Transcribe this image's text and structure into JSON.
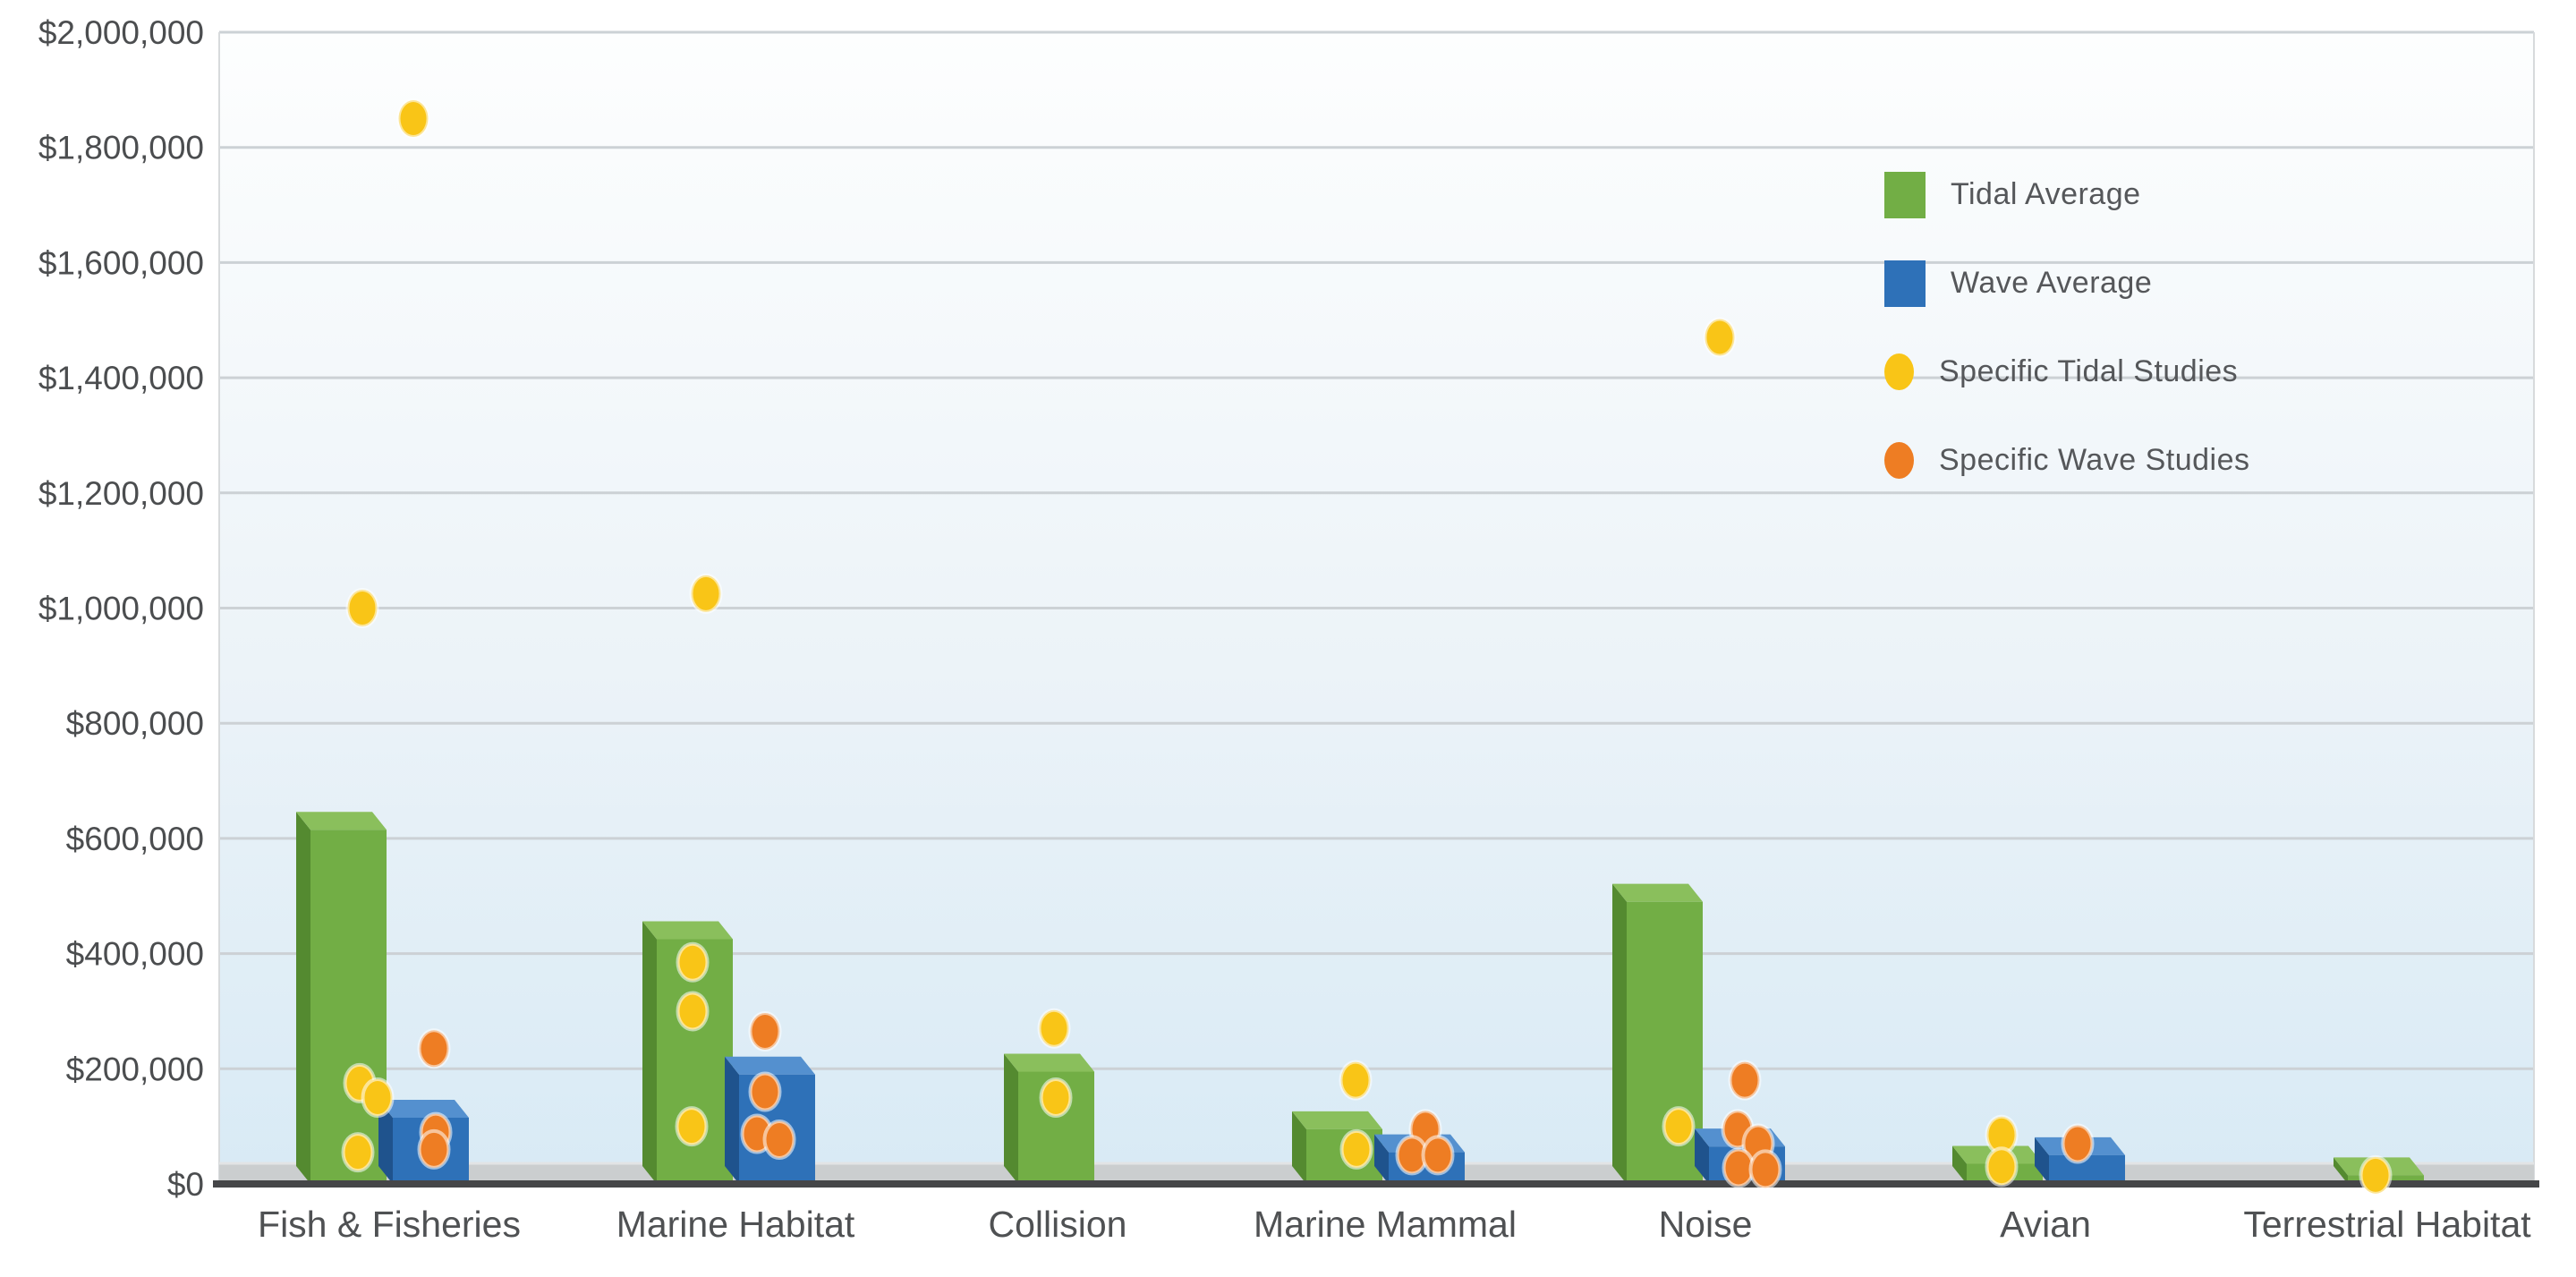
{
  "chart_data": {
    "type": "bar",
    "subtype": "3d-columns-with-scatter-overlay",
    "title": "",
    "xlabel": "",
    "ylabel": "",
    "categories": [
      "Fish & Fisheries",
      "Marine Habitat",
      "Collision",
      "Marine Mammal",
      "Noise",
      "Avian",
      "Terrestrial Habitat"
    ],
    "y_axis": {
      "min": 0,
      "max": 2000000,
      "step": 200000,
      "tick_labels": [
        "$0",
        "$200,000",
        "$400,000",
        "$600,000",
        "$800,000",
        "$1,000,000",
        "$1,200,000",
        "$1,400,000",
        "$1,600,000",
        "$1,800,000",
        "$2,000,000"
      ],
      "grid": true
    },
    "legend_position": "top-right",
    "series": [
      {
        "name": "Tidal Average",
        "kind": "bar",
        "color": "#72ae45",
        "color_top": "#8abf5c",
        "color_side": "#548a30",
        "values": [
          615000,
          425000,
          195000,
          95000,
          490000,
          35000,
          15000
        ]
      },
      {
        "name": "Wave Average",
        "kind": "bar",
        "color": "#2e71b8",
        "color_top": "#5490cf",
        "color_side": "#1f538d",
        "values": [
          115000,
          190000,
          0,
          55000,
          65000,
          50000,
          0
        ]
      },
      {
        "name": "Specific Tidal Studies",
        "kind": "scatter",
        "color": "#f9c517",
        "points": [
          {
            "category": 0,
            "value": 1850000,
            "dx": 27
          },
          {
            "category": 0,
            "value": 1000000,
            "dx": -30
          },
          {
            "category": 0,
            "value": 175000,
            "dx": -33
          },
          {
            "category": 0,
            "value": 150000,
            "dx": -13
          },
          {
            "category": 0,
            "value": 55000,
            "dx": -35
          },
          {
            "category": 1,
            "value": 1025000,
            "dx": -33
          },
          {
            "category": 1,
            "value": 385000,
            "dx": -48
          },
          {
            "category": 1,
            "value": 300000,
            "dx": -48
          },
          {
            "category": 1,
            "value": 100000,
            "dx": -49
          },
          {
            "category": 2,
            "value": 270000,
            "dx": -4
          },
          {
            "category": 2,
            "value": 150000,
            "dx": -2
          },
          {
            "category": 3,
            "value": 180000,
            "dx": -33
          },
          {
            "category": 3,
            "value": 60000,
            "dx": -32
          },
          {
            "category": 4,
            "value": 1470000,
            "dx": 16
          },
          {
            "category": 4,
            "value": 100000,
            "dx": -30
          },
          {
            "category": 5,
            "value": 85000,
            "dx": -49
          },
          {
            "category": 5,
            "value": 30000,
            "dx": -49
          },
          {
            "category": 6,
            "value": 15000,
            "dx": -13
          }
        ]
      },
      {
        "name": "Specific Wave Studies",
        "kind": "scatter",
        "color": "#ee7d23",
        "points": [
          {
            "category": 0,
            "value": 235000,
            "dx": 50
          },
          {
            "category": 0,
            "value": 90000,
            "dx": 52
          },
          {
            "category": 0,
            "value": 60000,
            "dx": 50
          },
          {
            "category": 1,
            "value": 265000,
            "dx": 33
          },
          {
            "category": 1,
            "value": 160000,
            "dx": 33
          },
          {
            "category": 1,
            "value": 87000,
            "dx": 24
          },
          {
            "category": 1,
            "value": 77000,
            "dx": 49
          },
          {
            "category": 3,
            "value": 95000,
            "dx": 45
          },
          {
            "category": 3,
            "value": 50000,
            "dx": 30
          },
          {
            "category": 3,
            "value": 50000,
            "dx": 59
          },
          {
            "category": 4,
            "value": 180000,
            "dx": 44
          },
          {
            "category": 4,
            "value": 95000,
            "dx": 36
          },
          {
            "category": 4,
            "value": 70000,
            "dx": 59
          },
          {
            "category": 4,
            "value": 28000,
            "dx": 37
          },
          {
            "category": 4,
            "value": 25000,
            "dx": 67
          },
          {
            "category": 5,
            "value": 70000,
            "dx": 36
          }
        ]
      }
    ],
    "colors": {
      "plot_bg_top": "#fdfefe",
      "plot_bg_mid": "#ecf3f8",
      "plot_bg_bottom": "#d8eaf5",
      "gridline": "#ccd1d5",
      "floor": "#cbcecf",
      "floor_highlight": "#e2e4e5",
      "axis_line": "#454648",
      "tick_text": "#4b4d4f",
      "category_text": "#4f5153",
      "legend_text": "#55575a"
    }
  }
}
